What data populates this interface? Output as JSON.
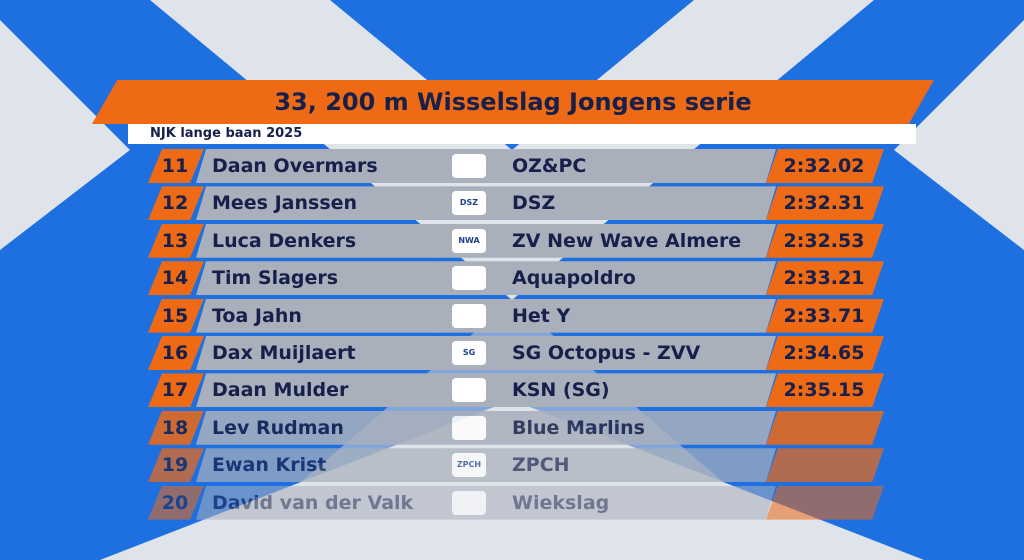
{
  "event": {
    "title": "33, 200 m Wisselslag Jongens serie",
    "meet": "NJK lange baan 2025"
  },
  "colors": {
    "accent": "#ee6a14",
    "background": "#1e6fe0",
    "row": "#a9b0bc",
    "text": "#16204a"
  },
  "rows": [
    {
      "rank": "11",
      "name": "Daan Overmars",
      "club": "OZ&PC",
      "logo": "",
      "time": "2:32.02"
    },
    {
      "rank": "12",
      "name": "Mees Janssen",
      "club": "DSZ",
      "logo": "DSZ",
      "time": "2:32.31"
    },
    {
      "rank": "13",
      "name": "Luca Denkers",
      "club": "ZV New Wave Almere",
      "logo": "NWA",
      "time": "2:32.53"
    },
    {
      "rank": "14",
      "name": "Tim Slagers",
      "club": "Aquapoldro",
      "logo": "",
      "time": "2:33.21"
    },
    {
      "rank": "15",
      "name": "Toa Jahn",
      "club": "Het Y",
      "logo": "",
      "time": "2:33.71"
    },
    {
      "rank": "16",
      "name": "Dax Muijlaert",
      "club": "SG Octopus - ZVV",
      "logo": "SG",
      "time": "2:34.65"
    },
    {
      "rank": "17",
      "name": "Daan Mulder",
      "club": "KSN (SG)",
      "logo": "",
      "time": "2:35.15"
    },
    {
      "rank": "18",
      "name": "Lev Rudman",
      "club": "Blue Marlins",
      "logo": "",
      "time": ""
    },
    {
      "rank": "19",
      "name": "Ewan Krist",
      "club": "ZPCH",
      "logo": "ZPCH",
      "time": ""
    },
    {
      "rank": "20",
      "name": "David van der Valk",
      "club": "Wiekslag",
      "logo": "",
      "time": ""
    }
  ]
}
